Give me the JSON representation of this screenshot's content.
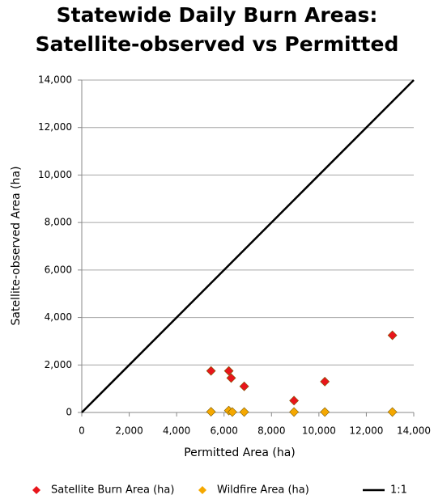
{
  "chart_data": {
    "type": "scatter",
    "title": [
      "Statewide Daily Burn Areas:",
      "Satellite-observed vs Permitted"
    ],
    "x_label": "Permitted Area (ha)",
    "y_label": "Satellite-observed Area (ha)",
    "xlim": [
      0,
      14000
    ],
    "ylim": [
      0,
      14000
    ],
    "xticks": [
      0,
      {
        "value": 2000,
        "label": "2,000"
      },
      {
        "value": 4000,
        "label": "4,000"
      },
      {
        "value": 6000,
        "label": "6,000"
      },
      {
        "value": 8000,
        "label": "8,000"
      },
      {
        "value": 10000,
        "label": "10,000"
      },
      {
        "value": 12000,
        "label": "12,000"
      },
      {
        "value": 14000,
        "label": "14,000"
      }
    ],
    "yticks": [
      0,
      {
        "value": 2000,
        "label": "2,000"
      },
      {
        "value": 4000,
        "label": "4,000"
      },
      {
        "value": 6000,
        "label": "6,000"
      },
      {
        "value": 8000,
        "label": "8,000"
      },
      {
        "value": 10000,
        "label": "10,000"
      },
      {
        "value": 12000,
        "label": "12,000"
      },
      {
        "value": 14000,
        "label": "14,000"
      }
    ],
    "grid": true,
    "legend": "bottom",
    "series": [
      {
        "name": "Satellite Burn Area (ha)",
        "color": "#e8151b",
        "mode": "markers",
        "x": [
          5450,
          6200,
          6300,
          6850,
          8950,
          10250,
          13100
        ],
        "values": [
          1750,
          1750,
          1450,
          1100,
          500,
          1300,
          3250
        ]
      },
      {
        "name": "Wildfire Area (ha)",
        "color": "#f5a800",
        "mode": "markers",
        "x": [
          5450,
          6200,
          6350,
          6850,
          8950,
          10250,
          13100
        ],
        "values": [
          30,
          80,
          20,
          20,
          20,
          20,
          20
        ]
      },
      {
        "name": "1:1",
        "color": "#000000",
        "mode": "lines",
        "x": [
          0,
          14000
        ],
        "values": [
          0,
          14000
        ]
      }
    ]
  }
}
